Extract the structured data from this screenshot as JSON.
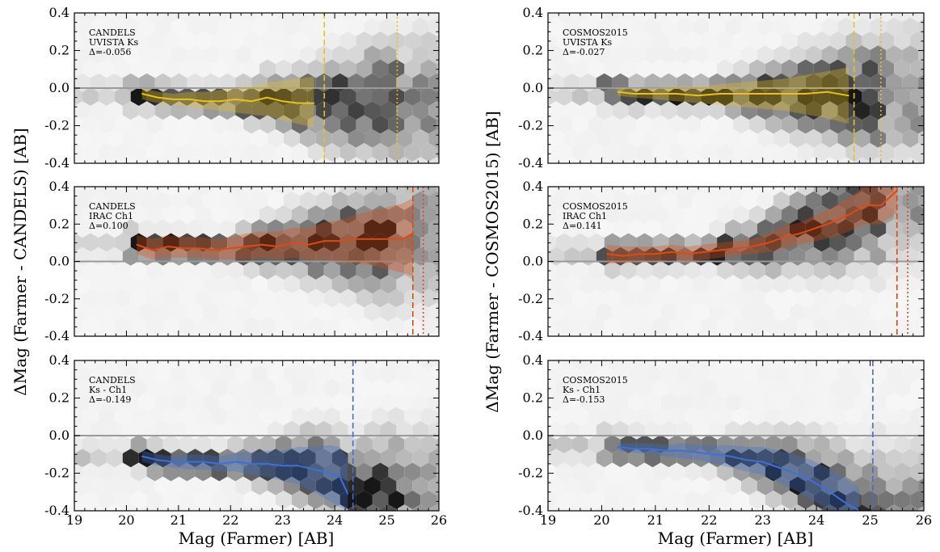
{
  "figure": {
    "ylabel_left": "ΔMag (Farmer - CANDELS) [AB]",
    "ylabel_right": "ΔMag (Farmer - COSMOS2015) [AB]",
    "xlabel": "Mag (Farmer) [AB]"
  },
  "chart_data": [
    {
      "type": "scatter",
      "panel": "top-left",
      "annotation": [
        "CANDELS",
        "UVISTA Ks",
        "Δ=-0.056"
      ],
      "xlim": [
        19,
        26
      ],
      "ylim": [
        -0.4,
        0.4
      ],
      "xticks": [
        19,
        20,
        21,
        22,
        23,
        24,
        25,
        26
      ],
      "yticks": [
        -0.4,
        -0.2,
        0.0,
        0.2,
        0.4
      ],
      "color": "#e8c21c",
      "series": [
        {
          "x": [
            20.3,
            20.6,
            20.9,
            21.2,
            21.5,
            21.8,
            22.1,
            22.4,
            22.7,
            23.0,
            23.3,
            23.6
          ],
          "values": [
            -0.03,
            -0.05,
            -0.06,
            -0.06,
            -0.07,
            -0.07,
            -0.06,
            -0.07,
            -0.05,
            -0.07,
            -0.08,
            -0.08
          ],
          "band_lo": [
            -0.06,
            -0.08,
            -0.09,
            -0.1,
            -0.11,
            -0.12,
            -0.13,
            -0.14,
            -0.15,
            -0.17,
            -0.19,
            -0.21
          ],
          "band_hi": [
            0.0,
            -0.02,
            -0.03,
            -0.02,
            -0.02,
            -0.01,
            0.0,
            0.01,
            0.03,
            0.04,
            0.05,
            0.06
          ]
        }
      ],
      "vlines": [
        {
          "x": 23.8,
          "style": "dashed"
        },
        {
          "x": 25.2,
          "style": "dotted"
        }
      ],
      "hline": 0.0
    },
    {
      "type": "scatter",
      "panel": "top-right",
      "annotation": [
        "COSMOS2015",
        "UVISTA Ks",
        "Δ=-0.027"
      ],
      "xlim": [
        19,
        26
      ],
      "ylim": [
        -0.4,
        0.4
      ],
      "xticks": [
        19,
        20,
        21,
        22,
        23,
        24,
        25,
        26
      ],
      "yticks": [
        -0.4,
        -0.2,
        0.0,
        0.2,
        0.4
      ],
      "color": "#e8c21c",
      "series": [
        {
          "x": [
            20.3,
            20.6,
            21.0,
            21.4,
            21.8,
            22.2,
            22.6,
            23.0,
            23.4,
            23.8,
            24.2,
            24.6
          ],
          "values": [
            -0.02,
            -0.03,
            -0.03,
            -0.03,
            -0.04,
            -0.03,
            -0.03,
            -0.03,
            -0.03,
            -0.03,
            -0.02,
            -0.04
          ],
          "band_lo": [
            -0.04,
            -0.05,
            -0.06,
            -0.07,
            -0.08,
            -0.09,
            -0.1,
            -0.11,
            -0.12,
            -0.14,
            -0.16,
            -0.19
          ],
          "band_hi": [
            0.0,
            0.0,
            0.0,
            0.01,
            0.01,
            0.02,
            0.03,
            0.04,
            0.05,
            0.07,
            0.09,
            0.11
          ]
        }
      ],
      "vlines": [
        {
          "x": 24.7,
          "style": "dashed"
        },
        {
          "x": 25.2,
          "style": "dotted"
        }
      ],
      "hline": 0.0
    },
    {
      "type": "scatter",
      "panel": "middle-left",
      "annotation": [
        "CANDELS",
        "IRAC Ch1",
        "Δ=0.100"
      ],
      "xlim": [
        19,
        26
      ],
      "ylim": [
        -0.4,
        0.4
      ],
      "xticks": [
        19,
        20,
        21,
        22,
        23,
        24,
        25,
        26
      ],
      "yticks": [
        -0.4,
        -0.2,
        0.0,
        0.2,
        0.4
      ],
      "color": "#e04a10",
      "series": [
        {
          "x": [
            20.2,
            20.5,
            20.8,
            21.1,
            21.4,
            21.7,
            22.0,
            22.3,
            22.6,
            22.9,
            23.2,
            23.5,
            23.8,
            24.1,
            24.4,
            24.7,
            25.0,
            25.3,
            25.5
          ],
          "values": [
            0.09,
            0.06,
            0.08,
            0.07,
            0.07,
            0.06,
            0.07,
            0.08,
            0.09,
            0.08,
            0.1,
            0.09,
            0.11,
            0.11,
            0.12,
            0.12,
            0.12,
            0.12,
            0.15
          ],
          "band_lo": [
            0.04,
            0.01,
            0.02,
            0.02,
            0.02,
            0.01,
            0.01,
            0.01,
            0.02,
            0.01,
            0.02,
            0.01,
            0.01,
            0.0,
            -0.01,
            -0.02,
            -0.04,
            -0.06,
            -0.08
          ],
          "band_hi": [
            0.14,
            0.12,
            0.14,
            0.13,
            0.13,
            0.12,
            0.13,
            0.15,
            0.16,
            0.16,
            0.18,
            0.18,
            0.21,
            0.22,
            0.25,
            0.27,
            0.29,
            0.31,
            0.34
          ]
        }
      ],
      "vlines": [
        {
          "x": 25.5,
          "style": "dashed"
        },
        {
          "x": 25.7,
          "style": "dotted"
        }
      ],
      "hline": 0.0
    },
    {
      "type": "scatter",
      "panel": "middle-right",
      "annotation": [
        "COSMOS2015",
        "IRAC Ch1",
        "Δ=0.141"
      ],
      "xlim": [
        19,
        26
      ],
      "ylim": [
        -0.4,
        0.4
      ],
      "xticks": [
        19,
        20,
        21,
        22,
        23,
        24,
        25,
        26
      ],
      "yticks": [
        -0.4,
        -0.2,
        0.0,
        0.2,
        0.4
      ],
      "color": "#e04a10",
      "series": [
        {
          "x": [
            20.1,
            20.4,
            20.7,
            21.0,
            21.3,
            21.6,
            21.9,
            22.2,
            22.5,
            22.8,
            23.1,
            23.4,
            23.7,
            24.0,
            24.3,
            24.6,
            24.9,
            25.2,
            25.5
          ],
          "values": [
            0.04,
            0.03,
            0.04,
            0.04,
            0.05,
            0.04,
            0.05,
            0.06,
            0.07,
            0.08,
            0.1,
            0.13,
            0.15,
            0.18,
            0.21,
            0.25,
            0.3,
            0.3,
            0.38
          ],
          "band_lo": [
            -0.01,
            -0.01,
            0.0,
            0.0,
            0.01,
            0.0,
            0.01,
            0.02,
            0.03,
            0.04,
            0.05,
            0.07,
            0.09,
            0.11,
            0.13,
            0.16,
            0.2,
            0.2,
            0.26
          ],
          "band_hi": [
            0.09,
            0.08,
            0.08,
            0.08,
            0.09,
            0.08,
            0.09,
            0.1,
            0.11,
            0.12,
            0.15,
            0.19,
            0.21,
            0.25,
            0.29,
            0.34,
            0.4,
            0.4,
            0.4
          ]
        }
      ],
      "vlines": [
        {
          "x": 25.5,
          "style": "dashed"
        },
        {
          "x": 25.7,
          "style": "dotted"
        }
      ],
      "hline": 0.0
    },
    {
      "type": "scatter",
      "panel": "bottom-left",
      "annotation": [
        "CANDELS",
        "Ks - Ch1",
        "Δ=-0.149"
      ],
      "xlim": [
        19,
        26
      ],
      "ylim": [
        -0.4,
        0.4
      ],
      "xticks": [
        19,
        20,
        21,
        22,
        23,
        24,
        25,
        26
      ],
      "yticks": [
        -0.4,
        -0.2,
        0.0,
        0.2,
        0.4
      ],
      "color": "#3f6fd8",
      "series": [
        {
          "x": [
            20.3,
            20.6,
            20.9,
            21.2,
            21.5,
            21.8,
            22.1,
            22.4,
            22.7,
            23.0,
            23.3,
            23.6,
            23.9,
            24.1,
            24.25
          ],
          "values": [
            -0.11,
            -0.13,
            -0.14,
            -0.14,
            -0.14,
            -0.15,
            -0.14,
            -0.15,
            -0.15,
            -0.16,
            -0.16,
            -0.18,
            -0.2,
            -0.22,
            -0.31
          ],
          "band_lo": [
            -0.14,
            -0.16,
            -0.17,
            -0.18,
            -0.18,
            -0.19,
            -0.19,
            -0.21,
            -0.22,
            -0.24,
            -0.26,
            -0.3,
            -0.35,
            -0.38,
            -0.4
          ],
          "band_hi": [
            -0.08,
            -0.1,
            -0.11,
            -0.1,
            -0.1,
            -0.11,
            -0.09,
            -0.09,
            -0.08,
            -0.08,
            -0.06,
            -0.06,
            -0.05,
            -0.06,
            -0.12
          ]
        }
      ],
      "vlines": [
        {
          "x": 24.35,
          "style": "dashed"
        }
      ],
      "hline": 0.0
    },
    {
      "type": "scatter",
      "panel": "bottom-right",
      "annotation": [
        "COSMOS2015",
        "Ks - Ch1",
        "Δ=-0.153"
      ],
      "xlim": [
        19,
        26
      ],
      "ylim": [
        -0.4,
        0.4
      ],
      "xticks": [
        19,
        20,
        21,
        22,
        23,
        24,
        25,
        26
      ],
      "yticks": [
        -0.4,
        -0.2,
        0.0,
        0.2,
        0.4
      ],
      "color": "#3f6fd8",
      "series": [
        {
          "x": [
            20.3,
            20.6,
            20.9,
            21.2,
            21.5,
            21.8,
            22.1,
            22.4,
            22.7,
            23.0,
            23.3,
            23.6,
            23.9,
            24.2,
            24.5,
            24.8
          ],
          "values": [
            -0.06,
            -0.07,
            -0.07,
            -0.08,
            -0.08,
            -0.09,
            -0.1,
            -0.11,
            -0.13,
            -0.14,
            -0.17,
            -0.2,
            -0.24,
            -0.29,
            -0.35,
            -0.4
          ],
          "band_lo": [
            -0.08,
            -0.09,
            -0.1,
            -0.11,
            -0.12,
            -0.13,
            -0.15,
            -0.17,
            -0.19,
            -0.21,
            -0.25,
            -0.29,
            -0.34,
            -0.39,
            -0.4,
            -0.4
          ],
          "band_hi": [
            -0.04,
            -0.04,
            -0.04,
            -0.05,
            -0.04,
            -0.05,
            -0.05,
            -0.05,
            -0.06,
            -0.06,
            -0.08,
            -0.1,
            -0.13,
            -0.17,
            -0.22,
            -0.28
          ]
        }
      ],
      "vlines": [
        {
          "x": 25.05,
          "style": "dashed"
        }
      ],
      "hline": 0.0
    }
  ]
}
